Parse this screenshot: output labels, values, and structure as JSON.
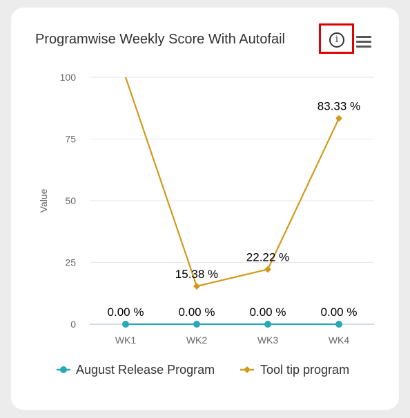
{
  "card": {
    "title": "Programwise Weekly Score With Autofail",
    "info_glyph": "i"
  },
  "icons": {
    "info": "info-circle-icon",
    "menu": "hamburger-menu-icon"
  },
  "colors": {
    "series_1": "#2aa8b8",
    "series_2": "#d09a1a",
    "highlight": "#e00000",
    "grid": "#e6e6e6"
  },
  "chart_data": {
    "type": "line",
    "title": "Programwise Weekly Score With Autofail",
    "xlabel": "",
    "ylabel": "Value",
    "categories": [
      "WK1",
      "WK2",
      "WK3",
      "WK4"
    ],
    "yticks": [
      0,
      25,
      50,
      75,
      100
    ],
    "ylim": [
      0,
      100
    ],
    "grid": true,
    "legend_position": "bottom",
    "series": [
      {
        "name": "August Release Program",
        "marker": "circle",
        "values": [
          0,
          0,
          0,
          0
        ],
        "labels": [
          "0.00 %",
          "0.00 %",
          "0.00 %",
          "0.00 %"
        ]
      },
      {
        "name": "Tool tip program",
        "marker": "diamond",
        "values": [
          100,
          15.38,
          22.22,
          83.33
        ],
        "labels": [
          "",
          "15.38 %",
          "22.22 %",
          "83.33 %"
        ]
      }
    ]
  }
}
